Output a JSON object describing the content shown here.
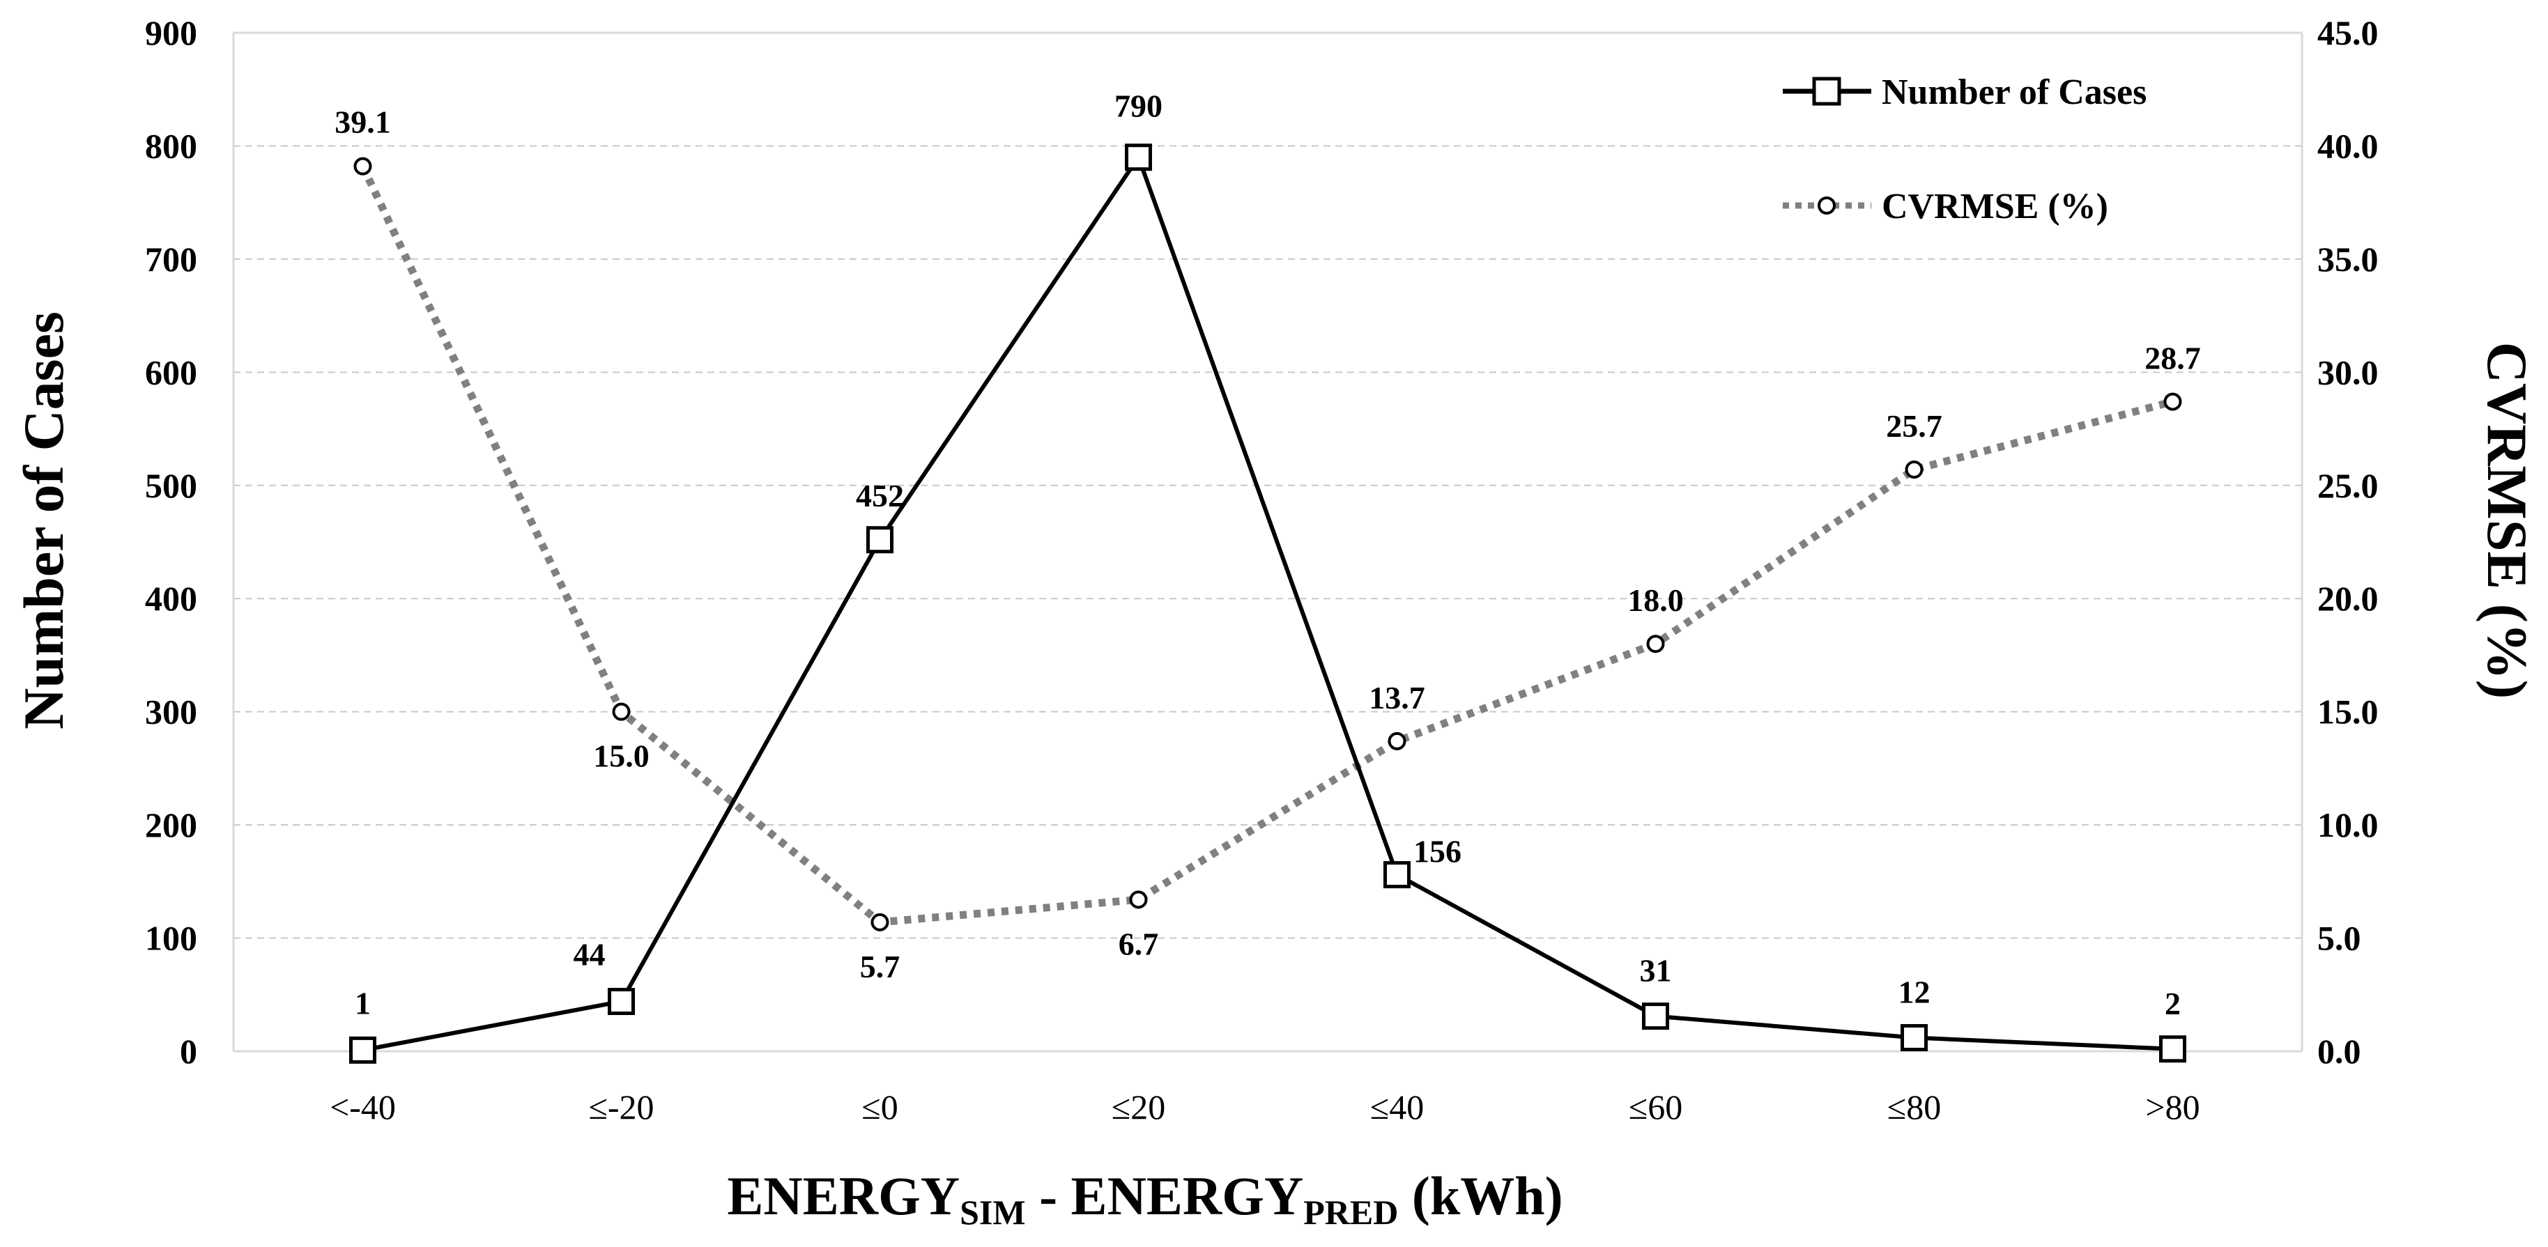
{
  "chart_data": {
    "type": "line",
    "title": "",
    "categories": [
      "<-40",
      "≤-20",
      "≤0",
      "≤20",
      "≤40",
      "≤60",
      "≤80",
      ">80"
    ],
    "series": [
      {
        "name": "Number of Cases",
        "axis": "left",
        "values": [
          1,
          44,
          452,
          790,
          156,
          31,
          12,
          2
        ],
        "labels": [
          "1",
          "44",
          "452",
          "790",
          "156",
          "31",
          "12",
          "2"
        ],
        "color": "#000000",
        "marker": "square",
        "line_style": "solid"
      },
      {
        "name": "CVRMSE (%)",
        "axis": "right",
        "values": [
          39.1,
          15.0,
          5.7,
          6.7,
          13.7,
          18.0,
          25.7,
          28.7
        ],
        "labels": [
          "39.1",
          "15.0",
          "5.7",
          "6.7",
          "13.7",
          "18.0",
          "25.7",
          "28.7"
        ],
        "color": "#808080",
        "marker": "circle",
        "line_style": "dotted"
      }
    ],
    "y_left": {
      "label": "Number of Cases",
      "min": 0,
      "max": 900,
      "ticks": [
        "0",
        "100",
        "200",
        "300",
        "400",
        "500",
        "600",
        "700",
        "800",
        "900"
      ]
    },
    "y_right": {
      "label": "CVRMSE (%)",
      "min": 0,
      "max": 45,
      "ticks": [
        "0.0",
        "5.0",
        "10.0",
        "15.0",
        "20.0",
        "25.0",
        "30.0",
        "35.0",
        "40.0",
        "45.0"
      ]
    },
    "xlabel": {
      "part1": "ENERGY",
      "sub1": "SIM",
      "part2": " - ENERGY",
      "sub2": "PRED",
      "part3": " (kWh)"
    },
    "grid": true,
    "legend": "top-right",
    "colors": {
      "grid": "#c8c8c8",
      "frame": "#d9d9d9"
    }
  }
}
